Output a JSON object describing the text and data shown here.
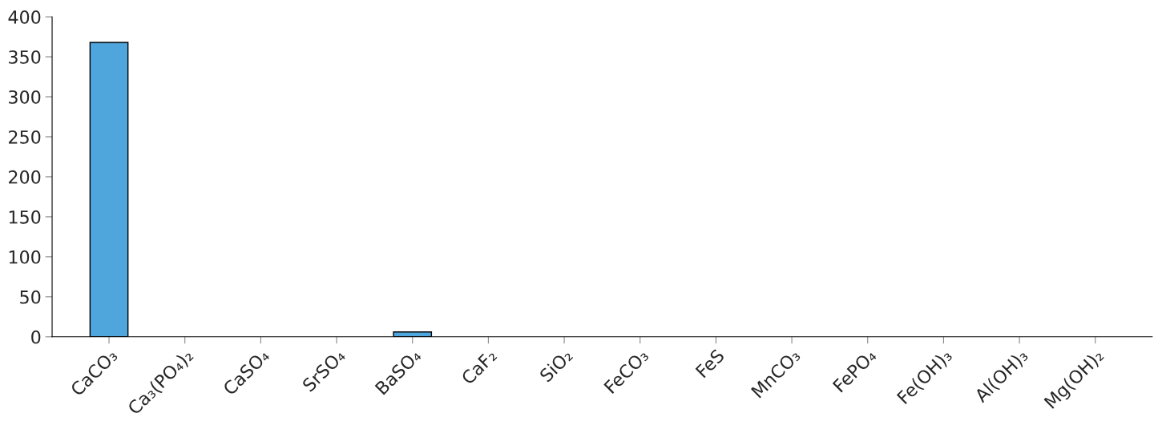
{
  "chart_data": {
    "type": "bar",
    "categories": [
      "CaCO₃",
      "Ca₃(PO₄)₂",
      "CaSO₄",
      "SrSO₄",
      "BaSO₄",
      "CaF₂",
      "SiO₂",
      "FeCO₃",
      "FeS",
      "MnCO₃",
      "FePO₄",
      "Fe(OH)₃",
      "Al(OH)₃",
      "Mg(OH)₂"
    ],
    "values": [
      368,
      0,
      0,
      0,
      6,
      0,
      0,
      0,
      0,
      0,
      0,
      0,
      0,
      0
    ],
    "color": "#4fa6dc",
    "ylim": [
      0,
      400
    ],
    "yticks": [
      0,
      50,
      100,
      150,
      200,
      250,
      300,
      350,
      400
    ],
    "grid": false,
    "legend": false
  }
}
